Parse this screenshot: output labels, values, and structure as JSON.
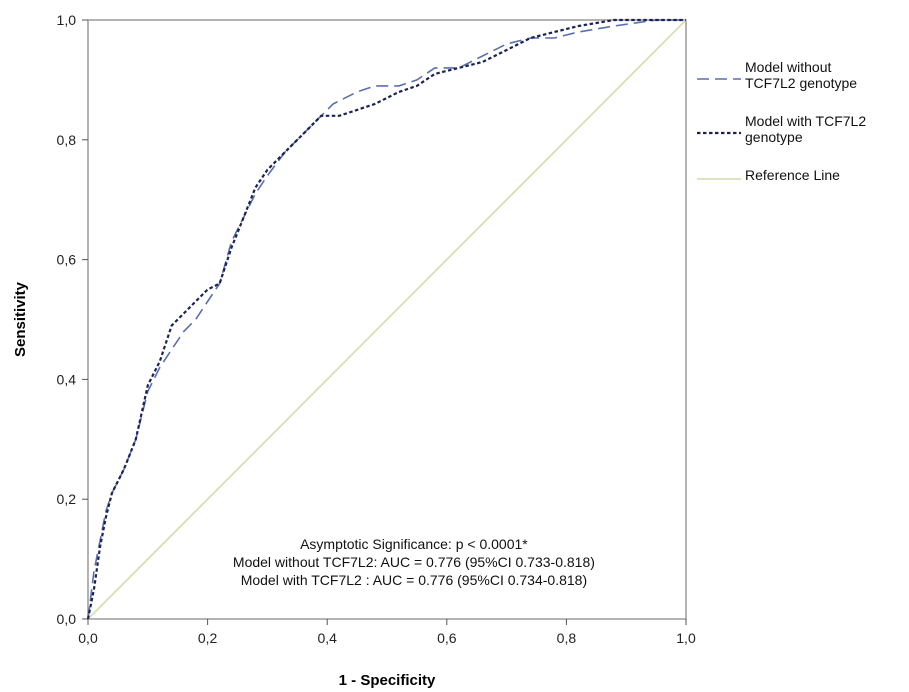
{
  "chart_data": {
    "type": "line",
    "title": "",
    "xlabel": "1 - Specificity",
    "ylabel": "Sensitivity",
    "xlim": [
      0,
      1
    ],
    "ylim": [
      0,
      1
    ],
    "x_ticks": [
      "0,0",
      "0,2",
      "0,4",
      "0,6",
      "0,8",
      "1,0"
    ],
    "y_ticks": [
      "0,0",
      "0,2",
      "0,4",
      "0,6",
      "0,8",
      "1,0"
    ],
    "grid": false,
    "legend_position": "right",
    "series": [
      {
        "name": "Model without TCF7L2 genotype",
        "name_lines": [
          "Model without",
          "TCF7L2 genotype"
        ],
        "style": "dashed",
        "color": "#5a6fae",
        "x": [
          0.0,
          0.01,
          0.02,
          0.03,
          0.04,
          0.06,
          0.08,
          0.1,
          0.12,
          0.14,
          0.16,
          0.18,
          0.2,
          0.22,
          0.24,
          0.26,
          0.28,
          0.3,
          0.33,
          0.36,
          0.39,
          0.41,
          0.45,
          0.48,
          0.52,
          0.55,
          0.58,
          0.62,
          0.66,
          0.7,
          0.74,
          0.78,
          0.82,
          0.88,
          0.95,
          1.0
        ],
        "y": [
          0.0,
          0.08,
          0.13,
          0.18,
          0.21,
          0.25,
          0.3,
          0.38,
          0.42,
          0.45,
          0.48,
          0.5,
          0.53,
          0.56,
          0.63,
          0.67,
          0.71,
          0.74,
          0.78,
          0.81,
          0.84,
          0.86,
          0.88,
          0.89,
          0.89,
          0.9,
          0.92,
          0.92,
          0.94,
          0.96,
          0.97,
          0.97,
          0.98,
          0.99,
          1.0,
          1.0
        ]
      },
      {
        "name": "Model with TCF7L2 genotype",
        "name_lines": [
          "Model with TCF7L2",
          "genotype"
        ],
        "style": "dotted",
        "color": "#1c2354",
        "x": [
          0.0,
          0.01,
          0.02,
          0.03,
          0.04,
          0.06,
          0.08,
          0.1,
          0.12,
          0.14,
          0.16,
          0.18,
          0.2,
          0.22,
          0.24,
          0.26,
          0.28,
          0.3,
          0.33,
          0.36,
          0.39,
          0.4,
          0.42,
          0.45,
          0.48,
          0.52,
          0.55,
          0.58,
          0.62,
          0.66,
          0.7,
          0.74,
          0.78,
          0.82,
          0.88,
          0.95,
          1.0
        ],
        "y": [
          0.0,
          0.05,
          0.12,
          0.17,
          0.21,
          0.25,
          0.3,
          0.39,
          0.43,
          0.49,
          0.51,
          0.53,
          0.55,
          0.56,
          0.62,
          0.67,
          0.72,
          0.75,
          0.78,
          0.81,
          0.84,
          0.84,
          0.84,
          0.85,
          0.86,
          0.88,
          0.89,
          0.91,
          0.92,
          0.93,
          0.95,
          0.97,
          0.98,
          0.99,
          1.0,
          1.0,
          1.0
        ]
      },
      {
        "name": "Reference Line",
        "name_lines": [
          "Reference Line"
        ],
        "style": "solid",
        "color": "#d8dfb4",
        "x": [
          0,
          1
        ],
        "y": [
          0,
          1
        ]
      }
    ],
    "annotations": [
      "Asymptotic Significance: p < 0.0001*",
      "Model without TCF7L2:  AUC = 0.776 (95%CI 0.733-0.818)",
      "Model with TCF7L2 :    AUC = 0.776 (95%CI 0.734-0.818)"
    ]
  }
}
